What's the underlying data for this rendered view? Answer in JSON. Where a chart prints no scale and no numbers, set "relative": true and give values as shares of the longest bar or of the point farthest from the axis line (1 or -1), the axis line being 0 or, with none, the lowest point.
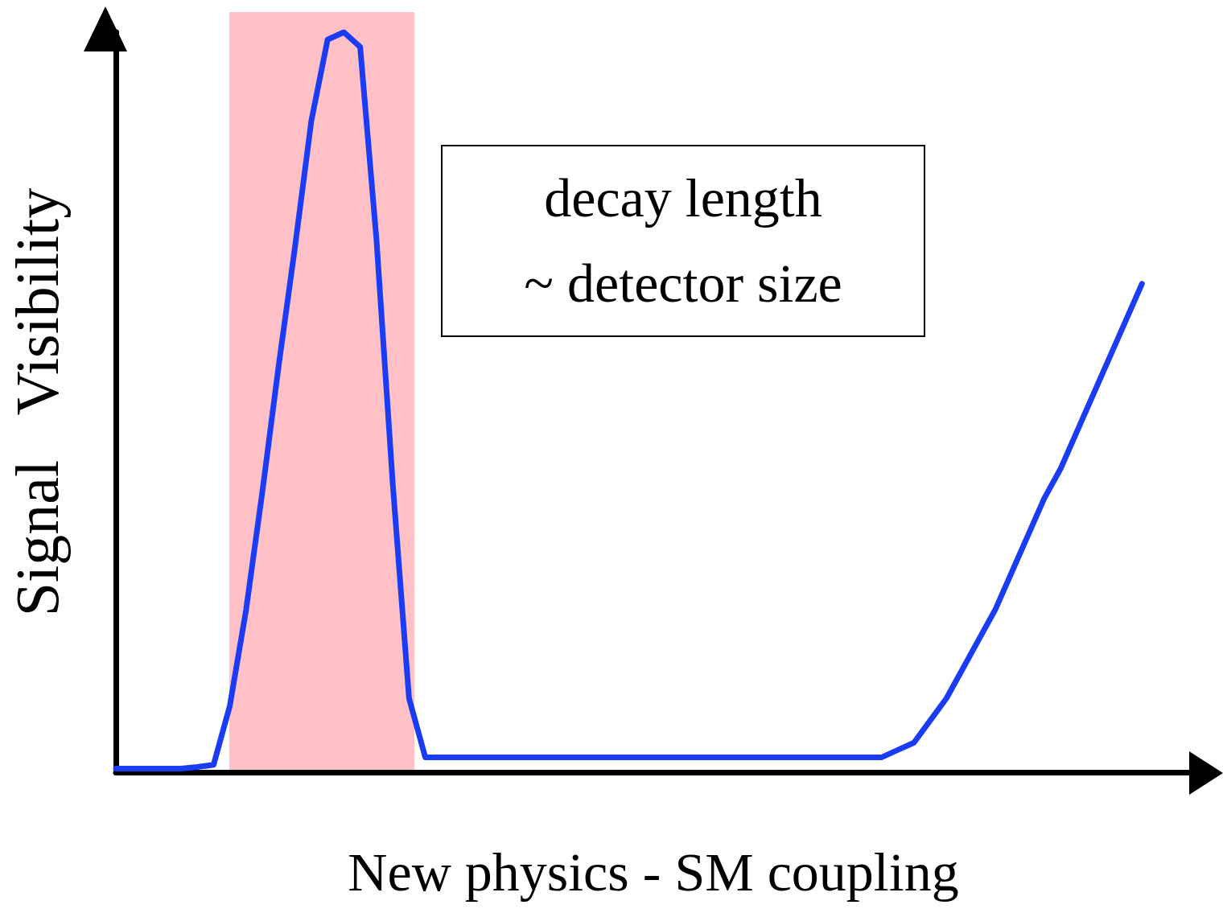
{
  "chart_data": {
    "type": "line",
    "relative": true,
    "xlabel": "New physics - SM coupling",
    "ylabel": "Signal   Visibility",
    "categories": [
      null,
      null,
      null,
      null,
      null,
      null,
      null,
      null,
      null,
      null,
      null,
      null,
      null,
      null,
      null,
      null,
      null,
      null,
      null,
      null,
      null,
      null,
      null,
      null,
      null,
      null,
      null,
      null,
      null,
      null,
      null,
      null,
      null,
      null,
      null,
      null,
      null,
      null,
      null,
      null,
      null,
      null,
      null,
      null,
      null,
      null,
      null,
      null,
      null,
      null,
      null,
      null,
      null,
      null,
      null,
      null,
      null,
      null,
      null,
      null,
      null,
      null,
      null,
      null,
      null,
      null,
      null
    ],
    "series": [
      {
        "color": "#1a3cf5",
        "values": [
          0.005,
          0.005,
          0.005,
          0.005,
          0.005,
          0.007,
          0.01,
          0.09,
          0.22,
          0.38,
          0.55,
          0.71,
          0.88,
          0.99,
          1,
          0.98,
          0.72,
          0.39,
          0.1,
          0.02,
          0.02,
          0.02,
          0.02,
          0.02,
          0.02,
          0.02,
          0.02,
          0.02,
          0.02,
          0.02,
          0.02,
          0.02,
          0.02,
          0.02,
          0.02,
          0.02,
          0.02,
          0.02,
          0.02,
          0.02,
          0.02,
          0.02,
          0.02,
          0.02,
          0.02,
          0.02,
          0.02,
          0.02,
          0.03,
          0.04,
          0.07,
          0.1,
          0.14,
          0.18,
          0.22,
          0.27,
          0.32,
          0.37,
          0.41,
          0.46,
          0.51,
          0.56,
          0.61,
          0.66,
          null,
          null,
          null
        ]
      }
    ],
    "annotations": [
      "decay length\n~ detector size"
    ],
    "grid": false,
    "marker": "none",
    "line_style": "solid"
  }
}
